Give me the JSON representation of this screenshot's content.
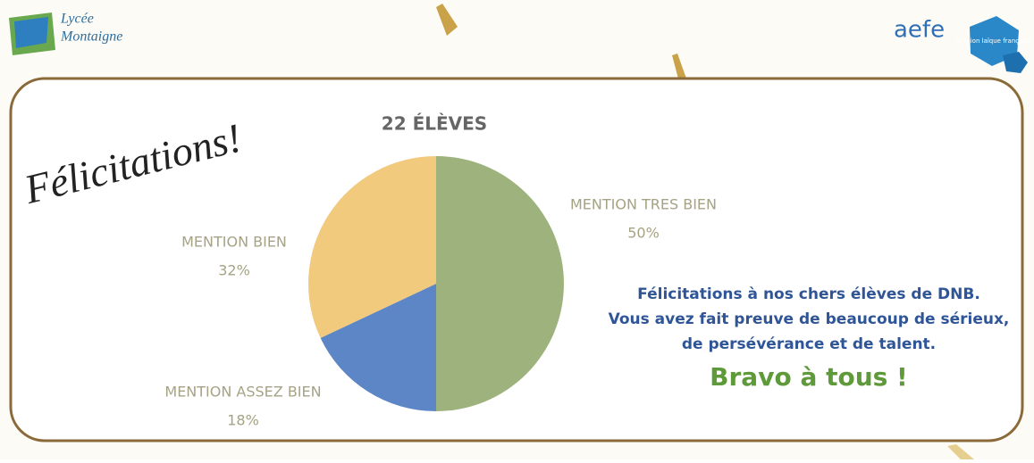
{
  "header": {
    "school_logo": [
      "Lycée",
      "Montaigne"
    ],
    "aefe": "aefe",
    "mlf": "mission laïque française"
  },
  "greeting": "Félicitations!",
  "chart_data": {
    "type": "pie",
    "title": "22 ÉLÈVES",
    "categories": [
      "MENTION TRES BIEN",
      "MENTION ASSEZ BIEN",
      "MENTION BIEN"
    ],
    "values": [
      50,
      18,
      32
    ],
    "value_labels": [
      "50%",
      "18%",
      "32%"
    ],
    "colors": [
      "#9db27c",
      "#5d86c6",
      "#f1ca7e"
    ]
  },
  "message": {
    "lines": [
      "Félicitations à nos chers élèves de DNB.",
      "Vous avez fait preuve de beaucoup de sérieux,",
      "de persévérance et de talent."
    ],
    "closing": "Bravo à tous !"
  }
}
